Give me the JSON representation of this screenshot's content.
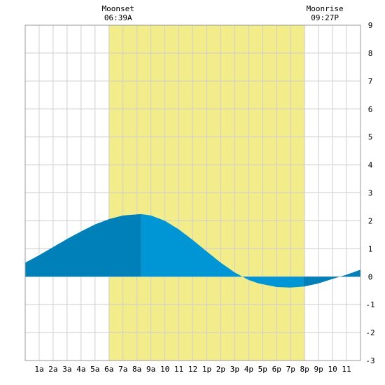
{
  "chart_data": {
    "type": "area",
    "title": "",
    "xlabel": "",
    "ylabel": "",
    "x_unit": "hour",
    "xlim": [
      0,
      24
    ],
    "ylim": [
      -3,
      9
    ],
    "y_ticks": [
      -3,
      -2,
      -1,
      0,
      1,
      2,
      3,
      4,
      5,
      6,
      7,
      8,
      9
    ],
    "x_tick_labels": [
      "1a",
      "2a",
      "3a",
      "4a",
      "5a",
      "6a",
      "7a",
      "8a",
      "9a",
      "10",
      "11",
      "12",
      "1p",
      "2p",
      "3p",
      "4p",
      "5p",
      "6p",
      "7p",
      "8p",
      "9p",
      "10",
      "11"
    ],
    "grid": true,
    "daylight_band": {
      "start_hour": 6.0,
      "end_hour": 20.0,
      "color": "#f3ec8a"
    },
    "annotations": [
      {
        "id": "moonset",
        "title": "Moonset",
        "time": "06:39A",
        "hour": 6.65
      },
      {
        "id": "moonrise",
        "title": "Moonrise",
        "time": "09:27P",
        "hour": 21.45
      }
    ],
    "series": [
      {
        "x": [
          0,
          1,
          2,
          3,
          4,
          5,
          6,
          7,
          8.3,
          9,
          10,
          11,
          12,
          13,
          14,
          15,
          16,
          16.7,
          18,
          19,
          20,
          21,
          22,
          23,
          24
        ],
        "y": [
          0.5,
          0.77,
          1.06,
          1.35,
          1.62,
          1.87,
          2.06,
          2.19,
          2.24,
          2.19,
          2.0,
          1.69,
          1.31,
          0.9,
          0.5,
          0.15,
          -0.12,
          -0.24,
          -0.37,
          -0.39,
          -0.35,
          -0.24,
          -0.08,
          0.07,
          0.25
        ]
      }
    ],
    "fill_segments": [
      {
        "from_hour": 0,
        "to_hour": 8.3,
        "color": "#0080b8"
      },
      {
        "from_hour": 8.3,
        "to_hour": 19.9,
        "color": "#0096d6"
      },
      {
        "from_hour": 19.9,
        "to_hour": 24,
        "color": "#0080b8"
      }
    ]
  }
}
